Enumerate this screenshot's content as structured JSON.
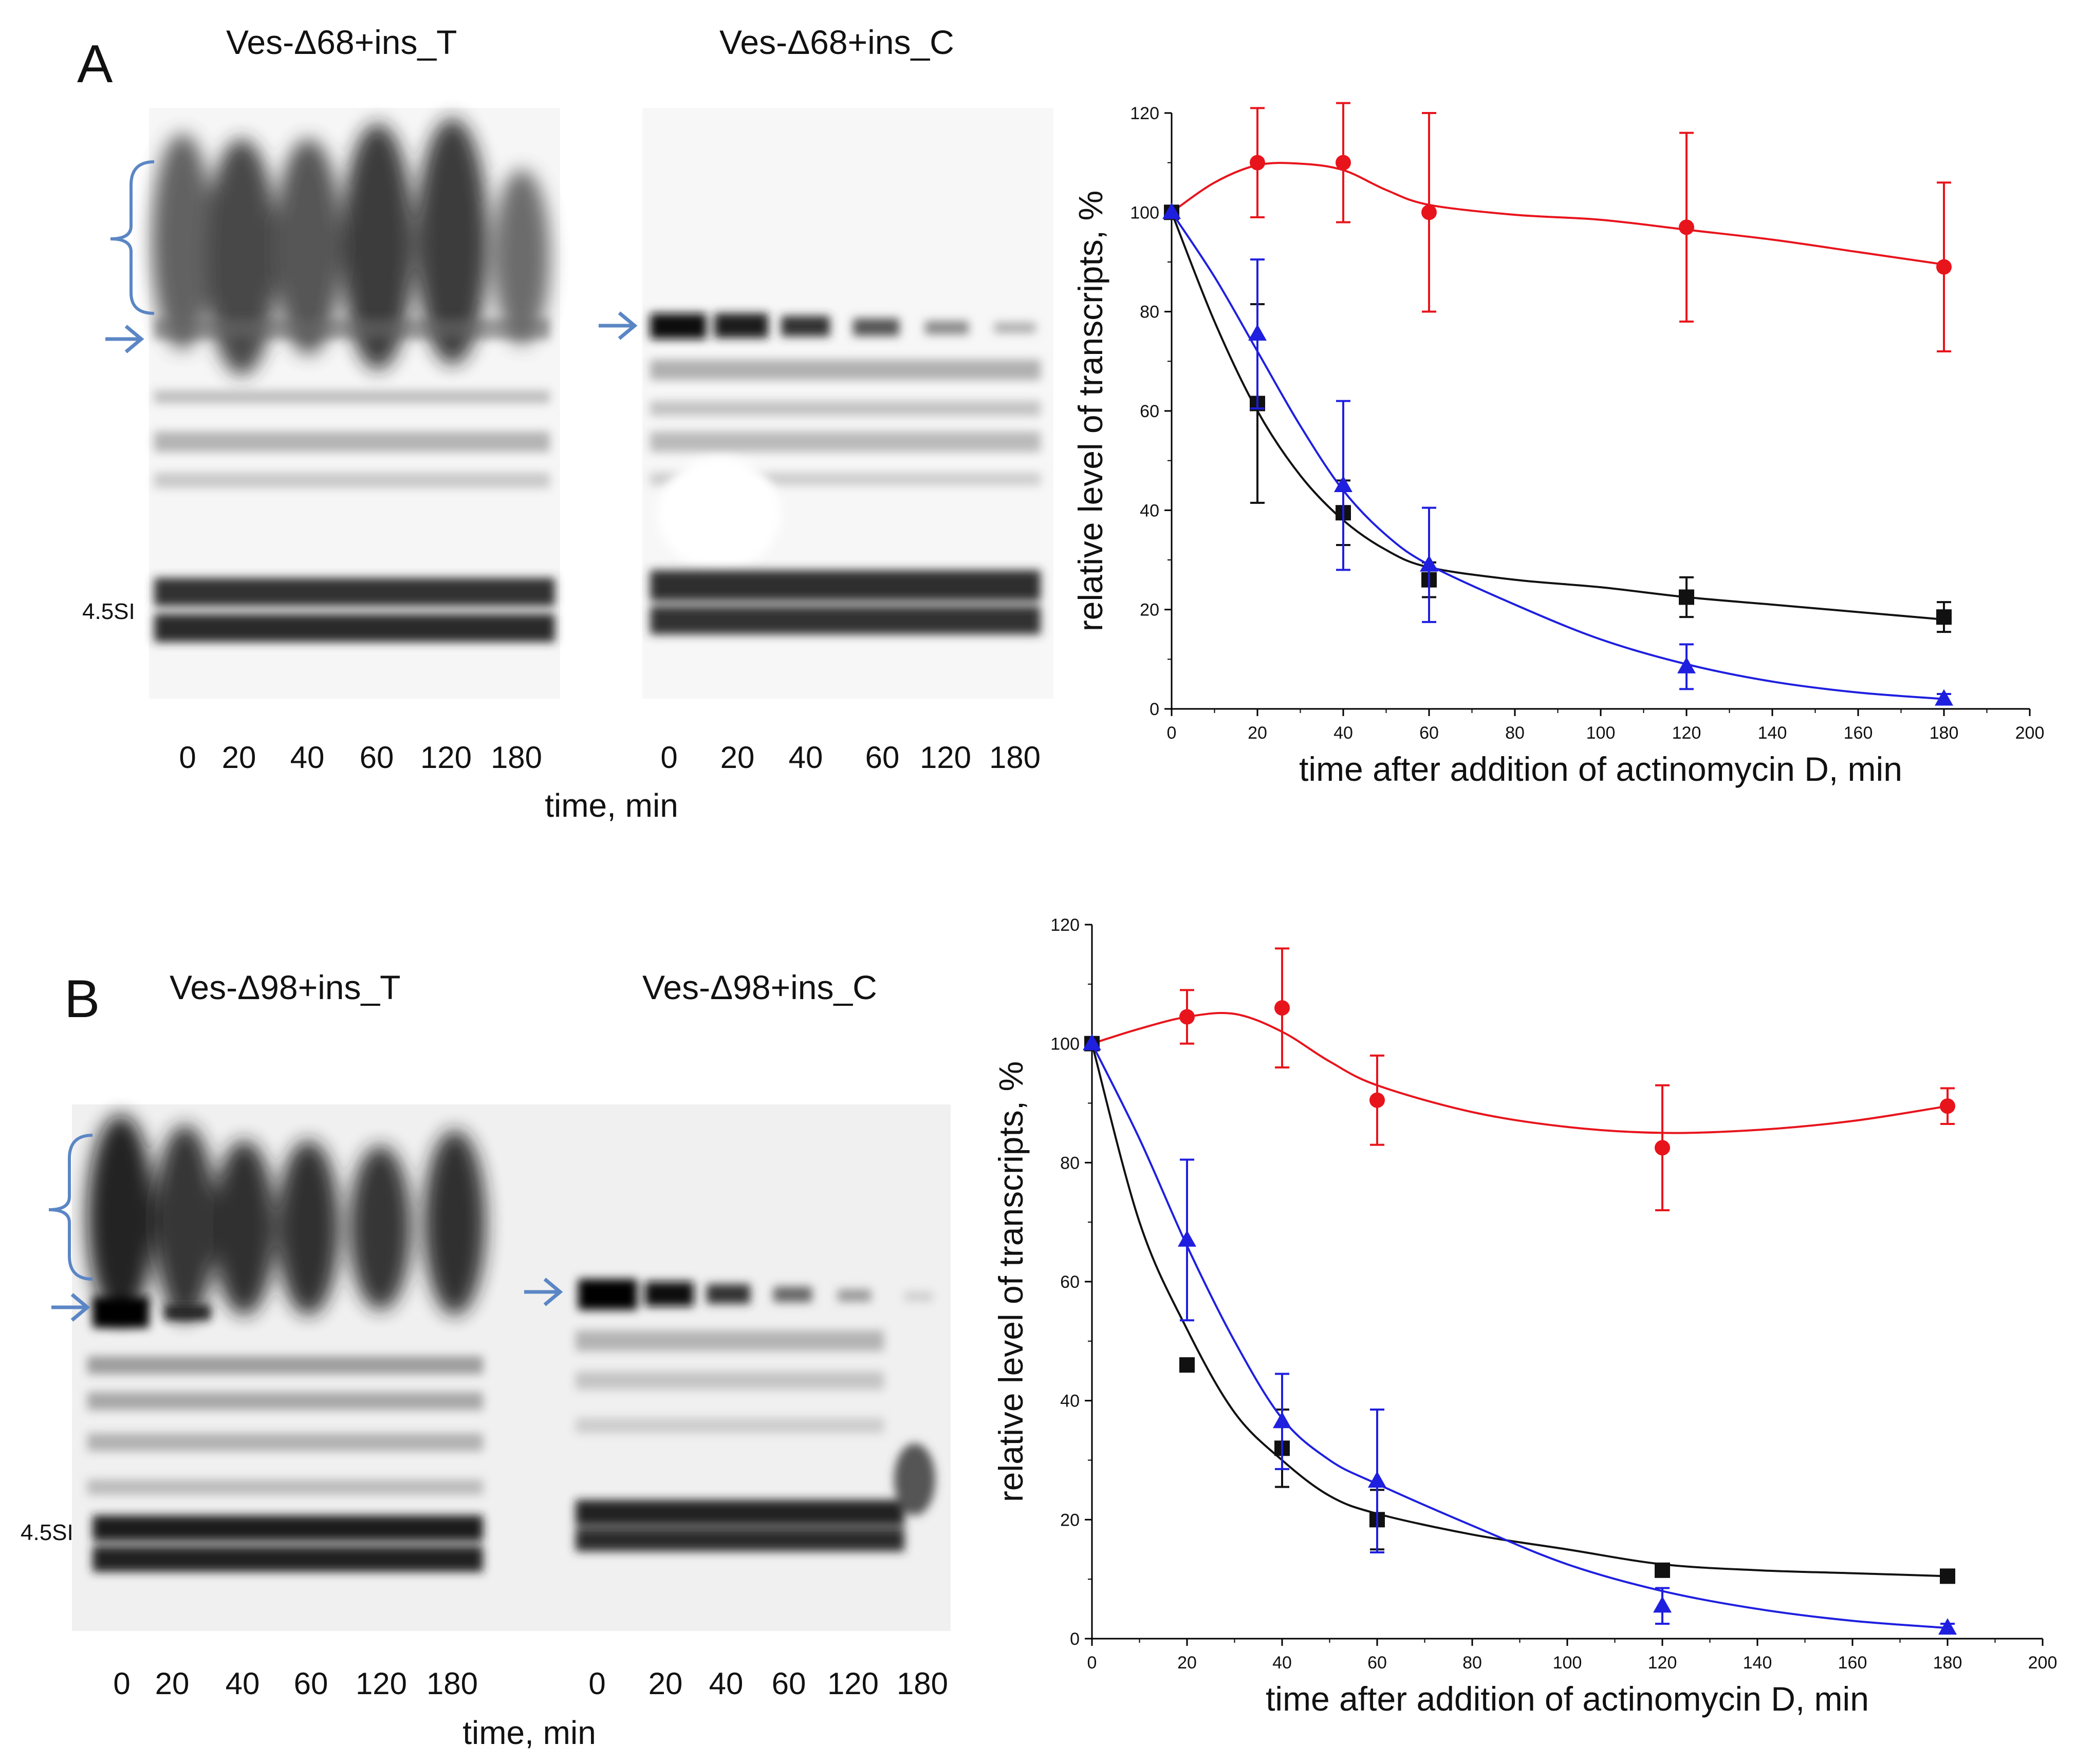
{
  "colors": {
    "red_series": "#e8141c",
    "blue_series": "#1f1fe0",
    "black_series": "#111111",
    "arrow": "#5b86c5"
  },
  "panels": [
    {
      "letter": "A",
      "gels": [
        {
          "title": "Ves-Δ68+ins_T",
          "lanes": [
            "0",
            "20",
            "40",
            "60",
            "120",
            "180"
          ],
          "marker": "4.5SI",
          "arrow_icon": "arrow-right-icon",
          "bracket_icon": "curly-bracket-icon"
        },
        {
          "title": "Ves-Δ68+ins_C",
          "lanes": [
            "0",
            "20",
            "40",
            "60",
            "120",
            "180"
          ]
        }
      ],
      "gel_axis_label": "time, min"
    },
    {
      "letter": "B",
      "gels": [
        {
          "title": "Ves-Δ98+ins_T",
          "lanes": [
            "0",
            "20",
            "40",
            "60",
            "120",
            "180"
          ],
          "marker": "4.5SI",
          "arrow_icon": "arrow-right-icon",
          "bracket_icon": "curly-bracket-icon"
        },
        {
          "title": "Ves-Δ98+ins_C",
          "lanes": [
            "0",
            "20",
            "40",
            "60",
            "120",
            "180"
          ]
        }
      ],
      "gel_axis_label": "time, min"
    }
  ],
  "chart_data": [
    {
      "type": "scatter",
      "title": "",
      "xlabel": "time after addition of actinomycin D, min",
      "ylabel": "relative level of transcripts, %",
      "xlim": [
        0,
        200
      ],
      "ylim": [
        0,
        120
      ],
      "xticks": [
        0,
        20,
        40,
        60,
        80,
        100,
        120,
        140,
        160,
        180,
        200
      ],
      "yticks": [
        0,
        20,
        40,
        60,
        80,
        100,
        120
      ],
      "series": [
        {
          "name": "red circles",
          "marker": "circle",
          "color": "#e8141c",
          "x": [
            0,
            20,
            40,
            60,
            120,
            180
          ],
          "y": [
            100,
            110,
            110,
            100,
            97,
            89
          ],
          "err": [
            0,
            11,
            12,
            20,
            19,
            17
          ],
          "fit": [
            [
              0,
              100
            ],
            [
              10,
              106
            ],
            [
              20,
              109.5
            ],
            [
              30,
              109.8
            ],
            [
              40,
              108.5
            ],
            [
              50,
              104.5
            ],
            [
              60,
              101.5
            ],
            [
              80,
              99.5
            ],
            [
              100,
              98.5
            ],
            [
              120,
              96.5
            ],
            [
              140,
              94.5
            ],
            [
              160,
              92
            ],
            [
              180,
              89.5
            ]
          ]
        },
        {
          "name": "black squares",
          "marker": "square",
          "color": "#111111",
          "x": [
            0,
            20,
            40,
            60,
            120,
            180
          ],
          "y": [
            100,
            61.5,
            39.5,
            26,
            22.5,
            18.5
          ],
          "err": [
            0,
            20,
            6.5,
            3.5,
            4,
            3
          ],
          "fit": [
            [
              0,
              100
            ],
            [
              10,
              78
            ],
            [
              20,
              60
            ],
            [
              30,
              47
            ],
            [
              40,
              38
            ],
            [
              50,
              32
            ],
            [
              60,
              28.5
            ],
            [
              80,
              26
            ],
            [
              100,
              24.5
            ],
            [
              120,
              22.5
            ],
            [
              140,
              21
            ],
            [
              160,
              19.5
            ],
            [
              180,
              18
            ]
          ]
        },
        {
          "name": "blue triangles",
          "marker": "triangle",
          "color": "#1f1fe0",
          "x": [
            0,
            20,
            40,
            60,
            120,
            180
          ],
          "y": [
            100,
            75.5,
            45,
            29,
            8.5,
            2
          ],
          "err": [
            0,
            15,
            17,
            11.5,
            4.5,
            1
          ],
          "fit": [
            [
              0,
              100
            ],
            [
              10,
              87
            ],
            [
              20,
              72
            ],
            [
              30,
              57
            ],
            [
              40,
              44
            ],
            [
              50,
              35
            ],
            [
              60,
              29
            ],
            [
              80,
              21
            ],
            [
              100,
              14
            ],
            [
              120,
              9
            ],
            [
              140,
              5.5
            ],
            [
              160,
              3.3
            ],
            [
              180,
              2
            ]
          ]
        }
      ]
    },
    {
      "type": "scatter",
      "title": "",
      "xlabel": "time after addition of actinomycin D, min",
      "ylabel": "relative level of transcripts, %",
      "xlim": [
        0,
        200
      ],
      "ylim": [
        0,
        120
      ],
      "xticks": [
        0,
        20,
        40,
        60,
        80,
        100,
        120,
        140,
        160,
        180,
        200
      ],
      "yticks": [
        0,
        20,
        40,
        60,
        80,
        100,
        120
      ],
      "series": [
        {
          "name": "red circles",
          "marker": "circle",
          "color": "#e8141c",
          "x": [
            0,
            20,
            40,
            60,
            120,
            180
          ],
          "y": [
            100,
            104.5,
            106,
            90.5,
            82.5,
            89.5
          ],
          "err": [
            0,
            4.5,
            10,
            7.5,
            10.5,
            3
          ],
          "fit": [
            [
              0,
              100
            ],
            [
              10,
              102.5
            ],
            [
              20,
              104.5
            ],
            [
              30,
              105
            ],
            [
              40,
              102
            ],
            [
              50,
              97
            ],
            [
              60,
              93
            ],
            [
              80,
              88.5
            ],
            [
              100,
              86
            ],
            [
              120,
              85
            ],
            [
              140,
              85.5
            ],
            [
              160,
              87
            ],
            [
              180,
              89.5
            ]
          ]
        },
        {
          "name": "black squares",
          "marker": "square",
          "color": "#111111",
          "x": [
            0,
            20,
            40,
            60,
            120,
            180
          ],
          "y": [
            100,
            46,
            32,
            20,
            11.5,
            10.5
          ],
          "err": [
            0,
            0,
            6.5,
            5,
            0,
            0
          ],
          "fit": [
            [
              0,
              100
            ],
            [
              10,
              70
            ],
            [
              20,
              52
            ],
            [
              30,
              38
            ],
            [
              40,
              30
            ],
            [
              50,
              24
            ],
            [
              60,
              21
            ],
            [
              80,
              17.5
            ],
            [
              100,
              15
            ],
            [
              120,
              12.5
            ],
            [
              140,
              11.5
            ],
            [
              160,
              11
            ],
            [
              180,
              10.5
            ]
          ]
        },
        {
          "name": "blue triangles",
          "marker": "triangle",
          "color": "#1f1fe0",
          "x": [
            0,
            20,
            40,
            60,
            120,
            180
          ],
          "y": [
            100,
            67,
            36.5,
            26.5,
            5.5,
            1.8
          ],
          "err": [
            0,
            13.5,
            8,
            12,
            3,
            0.7
          ],
          "fit": [
            [
              0,
              100
            ],
            [
              10,
              84
            ],
            [
              20,
              66
            ],
            [
              30,
              50
            ],
            [
              40,
              37
            ],
            [
              50,
              30
            ],
            [
              60,
              26
            ],
            [
              80,
              19
            ],
            [
              100,
              12.5
            ],
            [
              120,
              8
            ],
            [
              140,
              5
            ],
            [
              160,
              3
            ],
            [
              180,
              1.8
            ]
          ]
        }
      ]
    }
  ]
}
